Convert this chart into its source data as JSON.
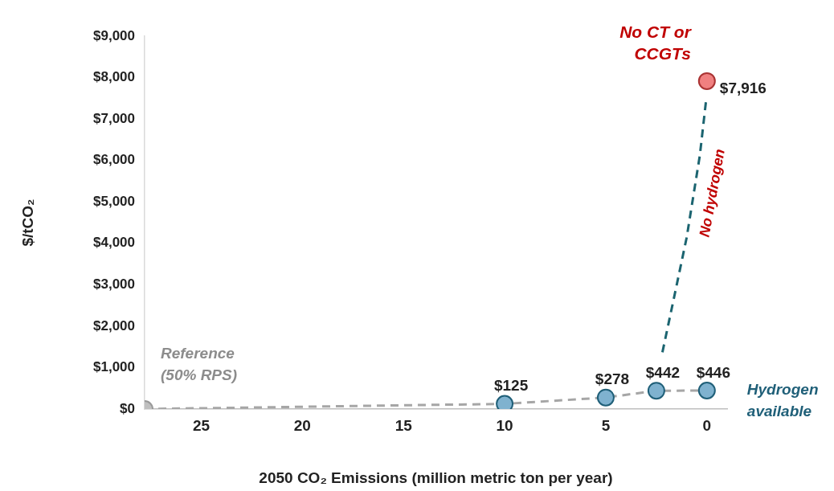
{
  "chart_data": {
    "type": "scatter",
    "xlabel": "2050 CO₂ Emissions (million metric ton per year)",
    "ylabel": "$/tCO₂",
    "xlim": [
      27.8,
      -1
    ],
    "xticks": [
      25,
      20,
      15,
      10,
      5,
      0
    ],
    "ylim": [
      0,
      9000
    ],
    "yticks": [
      {
        "value": 0,
        "label": "$0"
      },
      {
        "value": 1000,
        "label": "$1,000"
      },
      {
        "value": 2000,
        "label": "$2,000"
      },
      {
        "value": 3000,
        "label": "$3,000"
      },
      {
        "value": 4000,
        "label": "$4,000"
      },
      {
        "value": 5000,
        "label": "$5,000"
      },
      {
        "value": 6000,
        "label": "$6,000"
      },
      {
        "value": 7000,
        "label": "$7,000"
      },
      {
        "value": 8000,
        "label": "$8,000"
      },
      {
        "value": 9000,
        "label": "$9,000"
      }
    ],
    "grid": false,
    "legend": false,
    "marker": "circle",
    "series": [
      {
        "type": "line",
        "line_style": "dashed",
        "color": "#a6a6a6",
        "colors": [
          "#bfbfbf",
          "#7fb2cf",
          "#7fb2cf",
          "#7fb2cf",
          "#7fb2cf"
        ],
        "x": [
          27.8,
          10,
          5,
          2.5,
          0
        ],
        "values": [
          0,
          125,
          278,
          442,
          446
        ],
        "value_labels": [
          null,
          "$125",
          "$278",
          "$442",
          "$446"
        ]
      },
      {
        "type": "line",
        "name": "No hydrogen",
        "line_style": "dashed",
        "marker": "none",
        "color": "#1b6470",
        "x": [
          2.2,
          1.6,
          1,
          0.35,
          0.05
        ],
        "values": [
          1370,
          2750,
          4140,
          6120,
          7410
        ]
      },
      {
        "type": "scatter",
        "color": "#f08080",
        "x": [
          0
        ],
        "values": [
          7916
        ],
        "value_labels": [
          "$7,916"
        ]
      }
    ],
    "annotations": [
      "Reference\n(50% RPS)",
      "No CT or\nCCGTs",
      "Hydrogen\navailable"
    ]
  }
}
